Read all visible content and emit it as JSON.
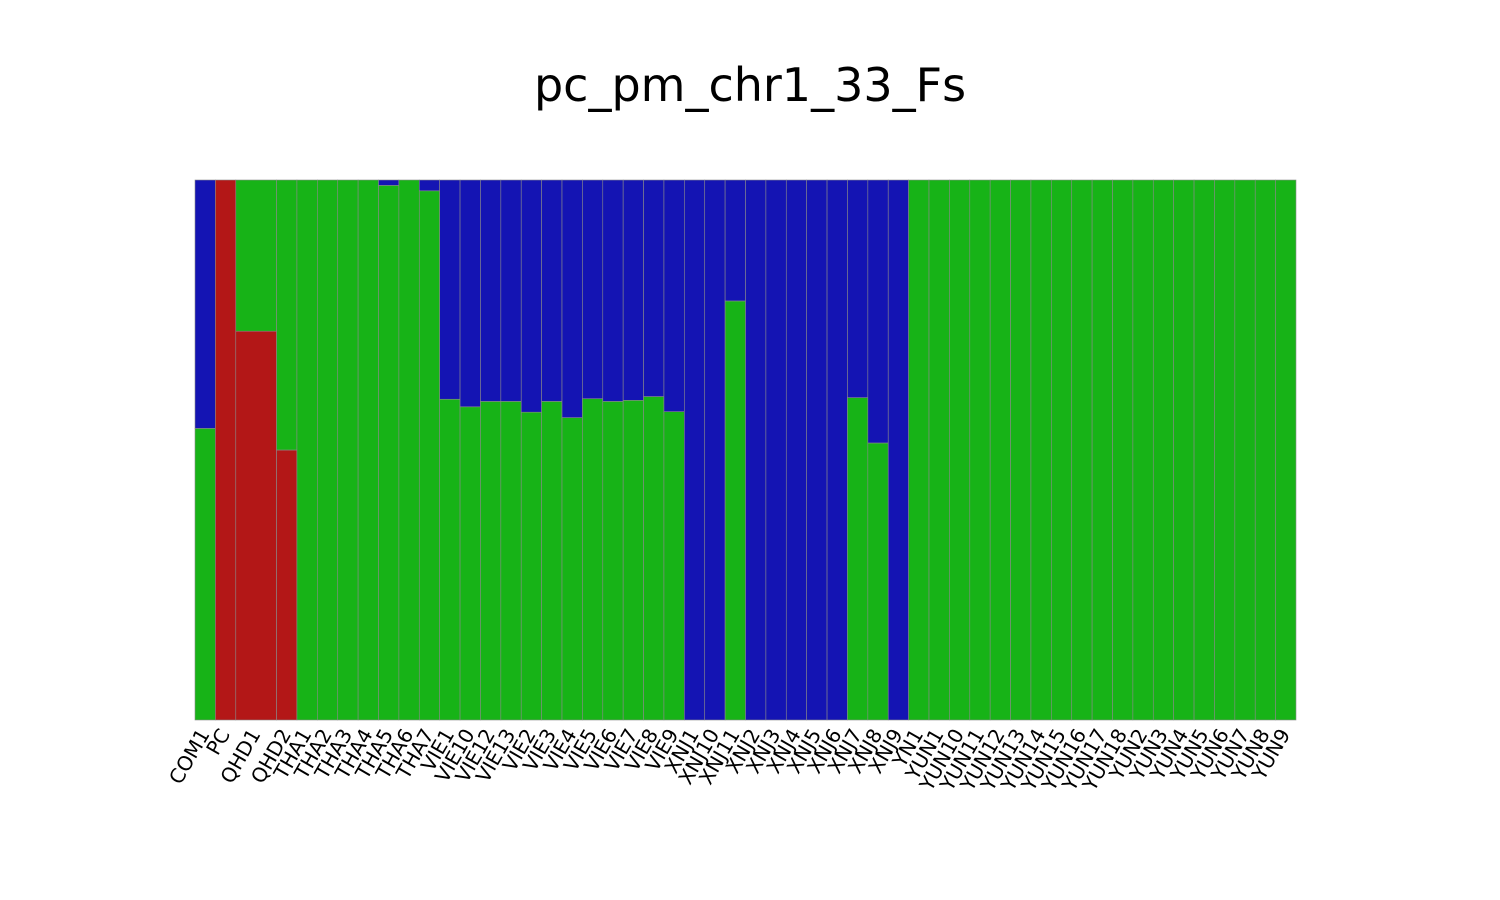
{
  "chart_data": {
    "type": "bar",
    "stacked": true,
    "normalized": true,
    "title": "pc_pm_chr1_33_Fs",
    "xlabel": "",
    "ylabel": "",
    "ylim": [
      0,
      1
    ],
    "grid": false,
    "legend": "none",
    "categories": [
      "COM1",
      "PC",
      "QHD1",
      "QHD2",
      "THA1",
      "THA2",
      "THA3",
      "THA4",
      "THA5",
      "THA6",
      "THA7",
      "VIE1",
      "VIE10",
      "VIE12",
      "VIE13",
      "VIE2",
      "VIE3",
      "VIE4",
      "VIE5",
      "VIE6",
      "VIE7",
      "VIE8",
      "VIE9",
      "XNJ1",
      "XNJ10",
      "XNJ11",
      "XNJ2",
      "XNJ3",
      "XNJ4",
      "XNJ5",
      "XNJ6",
      "XNJ7",
      "XNJ8",
      "XNJ9",
      "YN1",
      "YUN1",
      "YUN10",
      "YUN11",
      "YUN12",
      "YUN13",
      "YUN14",
      "YUN15",
      "YUN16",
      "YUN17",
      "YUN18",
      "YUN2",
      "YUN3",
      "YUN4",
      "YUN5",
      "YUN6",
      "YUN7",
      "YUN8",
      "YUN9"
    ],
    "tick_labels": [
      "COM1",
      "PC",
      "QHD1",
      "QHD2",
      "THA1",
      "THA2",
      "THA3",
      "THA4",
      "THA5",
      "THA6",
      "THA7",
      "VIE1",
      "VIE10",
      "VIE12",
      "VIE13",
      "VIE2",
      "VIE3",
      "VIE4",
      "VIE5",
      "VIE6",
      "VIE7",
      "VIE8",
      "VIE9",
      "XNJ1",
      "XNJ10",
      "XNJ11",
      "XNJ2",
      "XNJ3",
      "XNJ4",
      "XNJ5",
      "XNJ6",
      "XNJ7",
      "XNJ8",
      "XNJ9",
      "YN1",
      "YUN1",
      "YUN10",
      "YUN11",
      "YUN12",
      "YUN13",
      "YUN14",
      "YUN15",
      "YUN16",
      "YUN17",
      "YUN18",
      "YUN2",
      "YUN3",
      "YUN4",
      "YUN5",
      "YUN6",
      "YUN7",
      "YUN8",
      "YUN9"
    ],
    "sample_counts": [
      1,
      1,
      2,
      1,
      1,
      1,
      1,
      1,
      1,
      1,
      1,
      1,
      1,
      1,
      1,
      1,
      1,
      1,
      1,
      1,
      1,
      1,
      1,
      1,
      1,
      1,
      1,
      1,
      1,
      1,
      1,
      1,
      1,
      1,
      1,
      1,
      1,
      1,
      1,
      1,
      1,
      1,
      1,
      1,
      1,
      1,
      1,
      1,
      1,
      1,
      1,
      1,
      1
    ],
    "series": [
      {
        "color": "#b31717",
        "values": [
          0.0,
          1.0,
          0.72,
          0.5,
          0.0,
          0.0,
          0.0,
          0.0,
          0.0,
          0.0,
          0.0,
          0.0,
          0.0,
          0.0,
          0.0,
          0.0,
          0.0,
          0.0,
          0.0,
          0.0,
          0.0,
          0.0,
          0.0,
          0.0,
          0.0,
          0.0,
          0.0,
          0.0,
          0.0,
          0.0,
          0.0,
          0.0,
          0.0,
          0.0,
          0.0,
          0.0,
          0.0,
          0.0,
          0.0,
          0.0,
          0.0,
          0.0,
          0.0,
          0.0,
          0.0,
          0.0,
          0.0,
          0.0,
          0.0,
          0.0,
          0.0,
          0.0,
          0.0
        ]
      },
      {
        "color": "#17b317",
        "values": [
          0.54,
          0.0,
          0.28,
          0.5,
          1.0,
          1.0,
          1.0,
          1.0,
          0.99,
          1.0,
          0.98,
          0.594,
          0.58,
          0.59,
          0.59,
          0.57,
          0.59,
          0.56,
          0.595,
          0.59,
          0.592,
          0.599,
          0.571,
          0.0,
          0.0,
          0.776,
          0.0,
          0.0,
          0.0,
          0.0,
          0.0,
          0.597,
          0.513,
          0.0,
          1.0,
          1.0,
          1.0,
          1.0,
          1.0,
          1.0,
          1.0,
          1.0,
          1.0,
          1.0,
          1.0,
          1.0,
          1.0,
          1.0,
          1.0,
          1.0,
          1.0,
          1.0,
          1.0
        ]
      },
      {
        "color": "#1414b3",
        "values": [
          0.46,
          0.0,
          0.0,
          0.0,
          0.0,
          0.0,
          0.0,
          0.0,
          0.01,
          0.0,
          0.02,
          0.406,
          0.42,
          0.41,
          0.41,
          0.43,
          0.41,
          0.44,
          0.405,
          0.41,
          0.408,
          0.401,
          0.429,
          1.0,
          1.0,
          0.224,
          1.0,
          1.0,
          1.0,
          1.0,
          1.0,
          0.403,
          0.487,
          1.0,
          0.0,
          0.0,
          0.0,
          0.0,
          0.0,
          0.0,
          0.0,
          0.0,
          0.0,
          0.0,
          0.0,
          0.0,
          0.0,
          0.0,
          0.0,
          0.0,
          0.0,
          0.0,
          0.0
        ]
      }
    ]
  }
}
